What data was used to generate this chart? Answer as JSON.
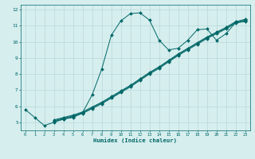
{
  "title": "",
  "xlabel": "Humidex (Indice chaleur)",
  "background_color": "#d6eeee",
  "grid_color": "#b8d8d8",
  "line_color": "#006666",
  "lines": [
    {
      "x": [
        0,
        1,
        2,
        3,
        4,
        5,
        6,
        7,
        8,
        9,
        10,
        11,
        12,
        13,
        14,
        15,
        16,
        17,
        18,
        19,
        20,
        21,
        22,
        23
      ],
      "y": [
        5.8,
        5.3,
        4.8,
        5.0,
        5.2,
        5.3,
        5.6,
        6.7,
        8.3,
        10.4,
        11.3,
        11.75,
        11.8,
        11.35,
        10.1,
        9.5,
        9.6,
        10.1,
        10.75,
        10.8,
        10.1,
        10.5,
        11.2,
        11.25
      ]
    },
    {
      "x": [
        3,
        4,
        5,
        6,
        7,
        8,
        9,
        10,
        11,
        12,
        13,
        14,
        15,
        16,
        17,
        18,
        19,
        20,
        21,
        22,
        23
      ],
      "y": [
        5.05,
        5.2,
        5.35,
        5.55,
        5.85,
        6.15,
        6.5,
        6.85,
        7.2,
        7.6,
        8.0,
        8.35,
        8.75,
        9.15,
        9.5,
        9.85,
        10.2,
        10.5,
        10.8,
        11.15,
        11.3
      ]
    },
    {
      "x": [
        3,
        4,
        5,
        6,
        7,
        8,
        9,
        10,
        11,
        12,
        13,
        14,
        15,
        16,
        17,
        18,
        19,
        20,
        21,
        22,
        23
      ],
      "y": [
        5.1,
        5.25,
        5.4,
        5.6,
        5.9,
        6.2,
        6.55,
        6.9,
        7.25,
        7.65,
        8.05,
        8.4,
        8.8,
        9.2,
        9.55,
        9.9,
        10.25,
        10.55,
        10.85,
        11.2,
        11.35
      ]
    },
    {
      "x": [
        3,
        4,
        5,
        6,
        7,
        8,
        9,
        10,
        11,
        12,
        13,
        14,
        15,
        16,
        17,
        18,
        19,
        20,
        21,
        22,
        23
      ],
      "y": [
        5.15,
        5.3,
        5.45,
        5.65,
        5.95,
        6.25,
        6.6,
        6.95,
        7.3,
        7.7,
        8.1,
        8.45,
        8.85,
        9.25,
        9.6,
        9.95,
        10.3,
        10.6,
        10.9,
        11.25,
        11.4
      ]
    }
  ],
  "xlim": [
    -0.5,
    23.5
  ],
  "ylim": [
    4.5,
    12.3
  ],
  "xticks": [
    0,
    1,
    2,
    3,
    4,
    5,
    6,
    7,
    8,
    9,
    10,
    11,
    12,
    13,
    14,
    15,
    16,
    17,
    18,
    19,
    20,
    21,
    22,
    23
  ],
  "yticks": [
    5,
    6,
    7,
    8,
    9,
    10,
    11,
    12
  ]
}
